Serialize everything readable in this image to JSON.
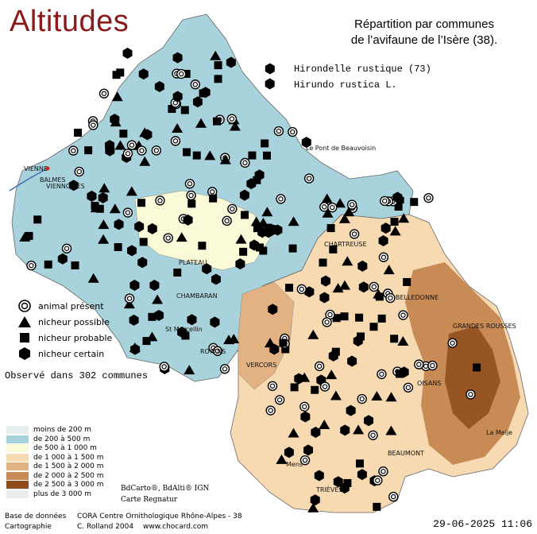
{
  "title": "Altitudes",
  "heading": {
    "line1": "Répartition par communes",
    "line2": "de l’avifaune de l’Isère (38)."
  },
  "species": {
    "common_name": "Hirondelle rustique  (73)",
    "latin_name": "Hirundo rustica L."
  },
  "legend": {
    "present": "animal présent",
    "possible": "nicheur possible",
    "probable": "nicheur probable",
    "certain": "nicheur certain"
  },
  "observed": "Observé dans 302 communes",
  "altitude_legend": [
    {
      "label": "moins de 200 m",
      "color": "#e6eef0"
    },
    {
      "label": "de 200 à 500 m",
      "color": "#a9d3dc"
    },
    {
      "label": "de 500 à 1 000 m",
      "color": "#fafad8"
    },
    {
      "label": "de 1 000 à 1 500 m",
      "color": "#f7d9b2"
    },
    {
      "label": "de 1 500 à 2 000 m",
      "color": "#e2b283"
    },
    {
      "label": "de 2 000 à 2 500 m",
      "color": "#c98b55"
    },
    {
      "label": "de 2 500 à 3 000 m",
      "color": "#8f4b1c"
    },
    {
      "label": "plus de 3 000 m",
      "color": "#ececec"
    }
  ],
  "credits": {
    "bdcarto": "BdCarto®, BdAlti® IGN",
    "carte": "Carte Regnatur",
    "base_label": "Base de données",
    "base_value": "CORA Centre Ornithologique Rhône-Alpes - 38",
    "carto_label": "Cartographie",
    "carto_value": "C. Rolland 2004",
    "website": "www.chocard.com"
  },
  "timestamp": "29-06-2025 11:06",
  "places": {
    "vienne": "VIENNE",
    "balmes": "BALMES",
    "viennoises": "VIENNOISES",
    "plateau": "PLATEAU",
    "chambaran": "CHAMBARAN",
    "st_marcellin": "St Marcellin",
    "royans": "ROYANS",
    "chartreuse": "CHARTREUSE",
    "belledonne": "BELLEDONNE",
    "grandes_rousses": "GRANDES ROUSSES",
    "oisans": "OISANS",
    "trieves": "TRIÈVES",
    "vercors": "VERCORS",
    "pont_beauvoisin": "Le Pont de Beauvoisin",
    "beaumont": "BEAUMONT",
    "la_meije": "La Meije",
    "mens": "Mens"
  },
  "colors": {
    "low": "#a9d3dc",
    "mid": "#fafad8",
    "high": "#f7d9b2",
    "mountain": "#c98b55",
    "peak": "#8f4b1c",
    "title": "#8b1a1a"
  }
}
